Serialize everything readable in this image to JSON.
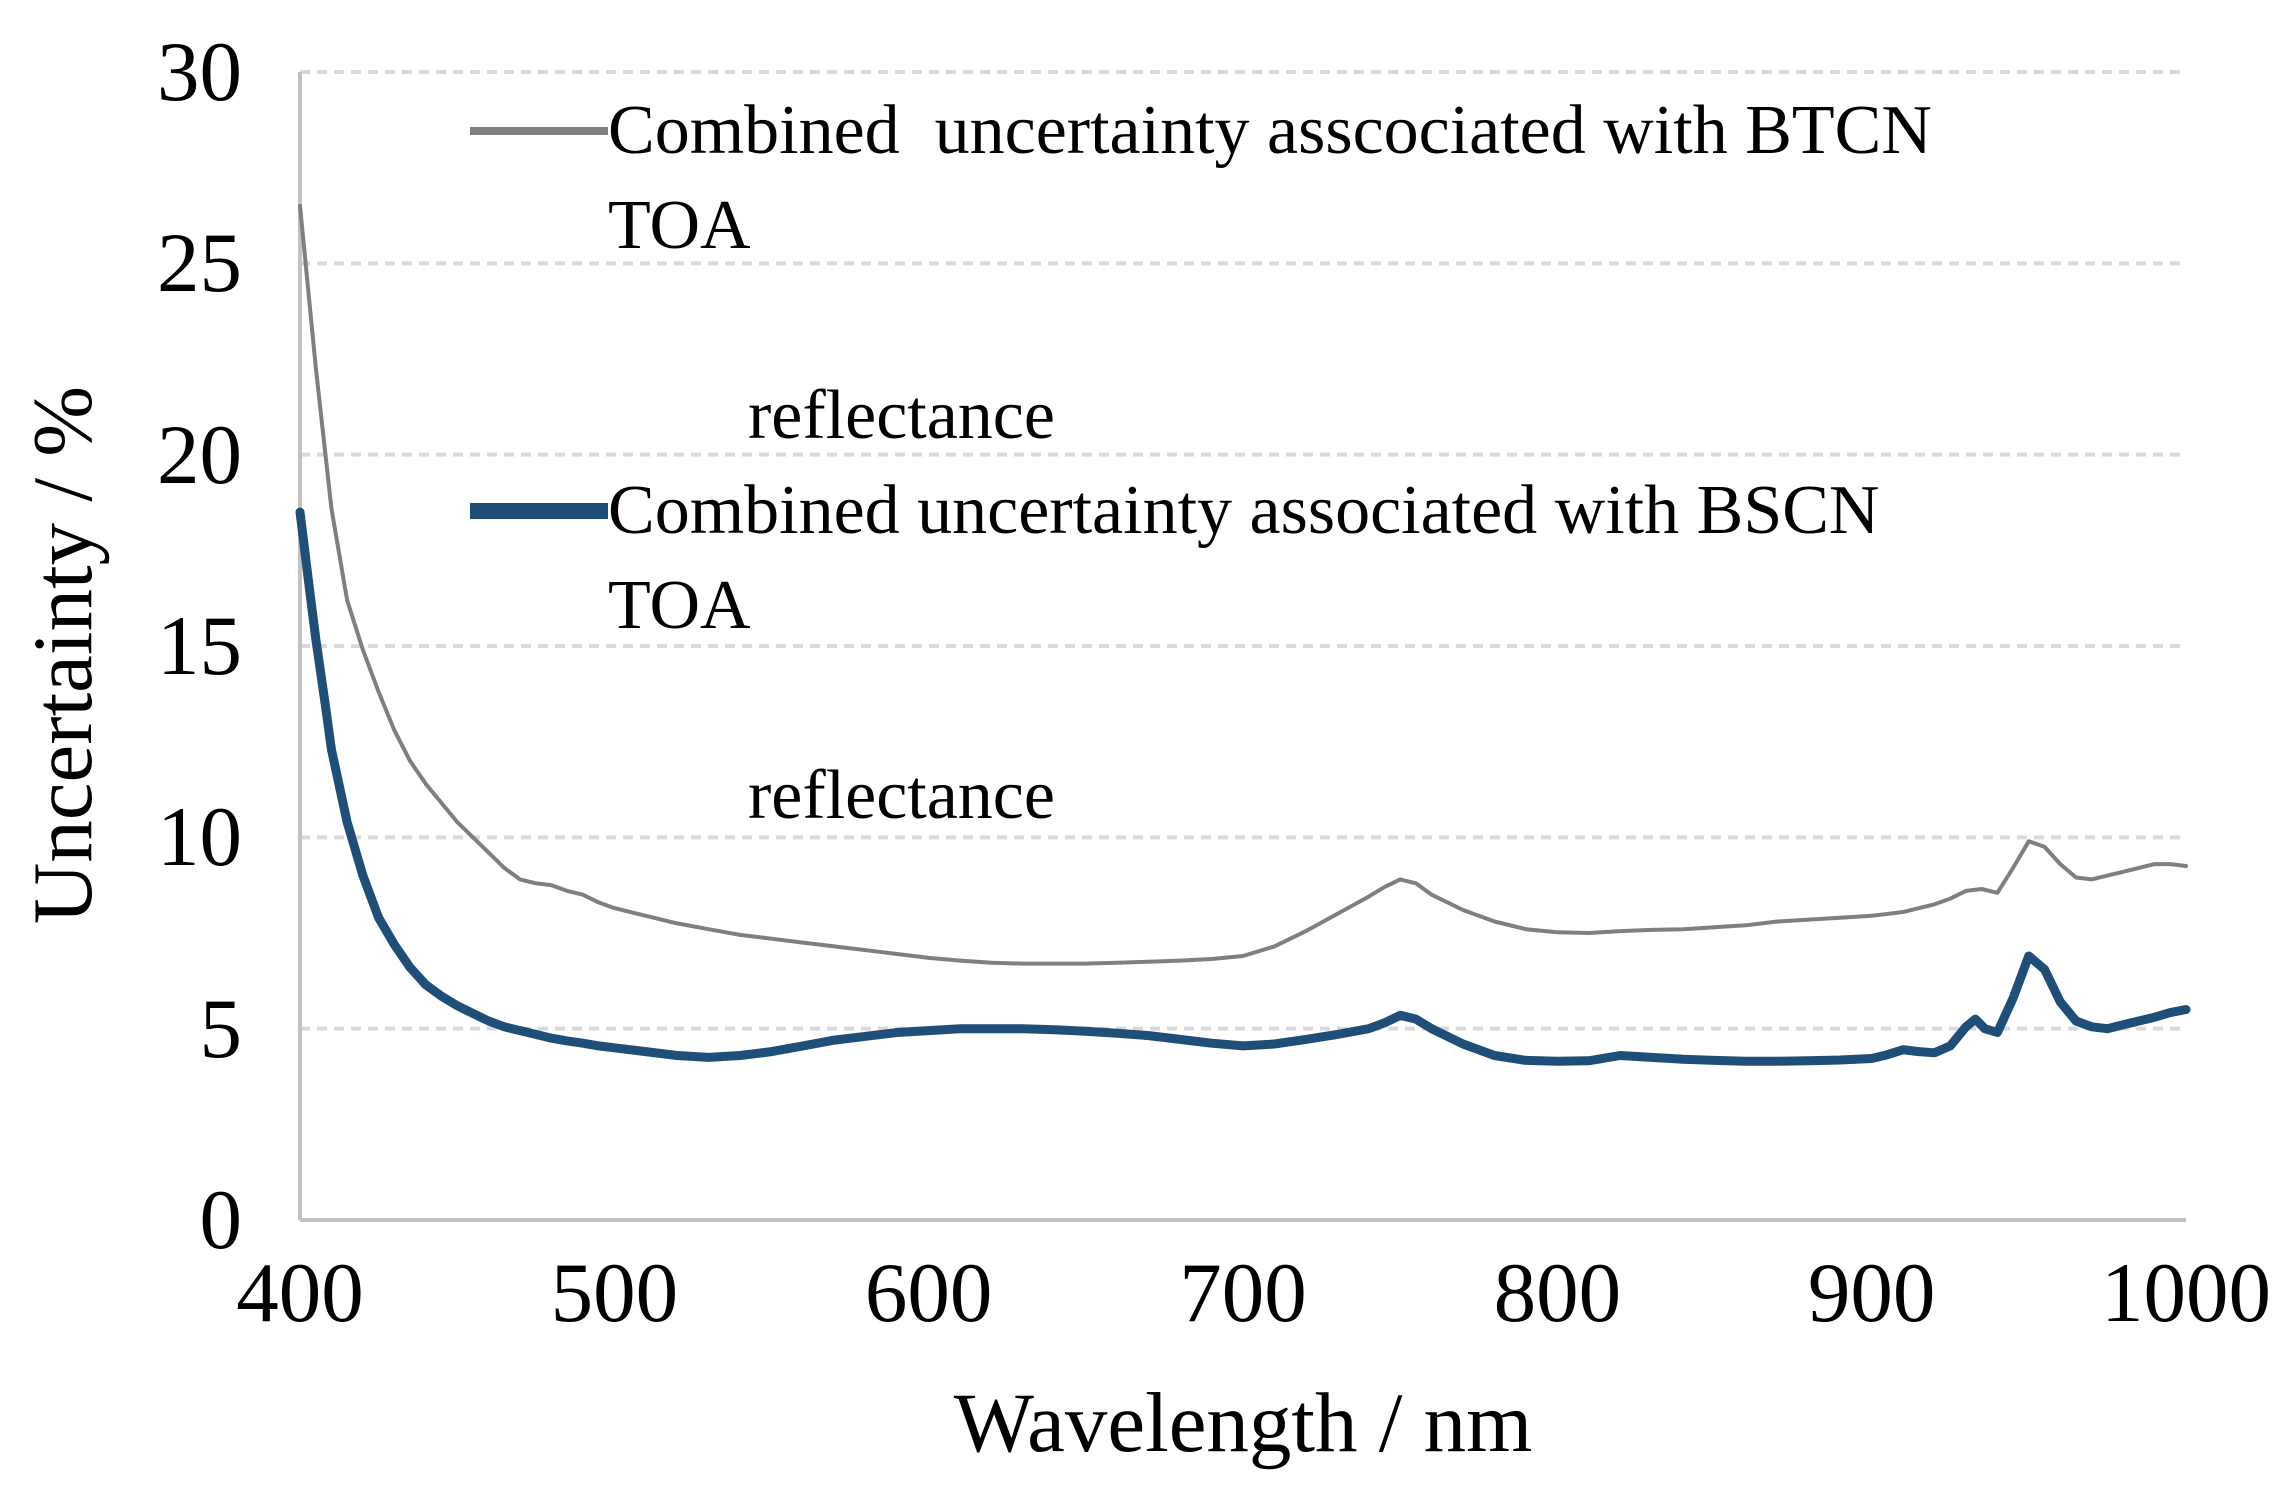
{
  "chart": {
    "y_axis_title": "Uncertainty / %",
    "x_axis_title": "Wavelength / nm",
    "y_tick_labels": [
      "0",
      "5",
      "10",
      "15",
      "20",
      "25",
      "30"
    ],
    "x_tick_labels": [
      "400",
      "500",
      "600",
      "700",
      "800",
      "900",
      "1000"
    ],
    "legend": {
      "entries": [
        {
          "lines": [
            "Combined  uncertainty asscociated with BTCN TOA",
            "reflectance"
          ],
          "color": "#7f7f7f"
        },
        {
          "lines": [
            "Combined uncertainty associated with BSCN TOA",
            "reflectance"
          ],
          "color": "#1f4e79"
        }
      ]
    }
  },
  "colors": {
    "btcn_line": "#7f7f7f",
    "bscn_line": "#1f4e79",
    "gridline": "#d9d9d9",
    "axis_line": "#c2c2c2",
    "text": "#000000"
  },
  "chart_data": {
    "type": "line",
    "title": "",
    "xlabel": "Wavelength / nm",
    "ylabel": "Uncertainty / %",
    "xlim": [
      400,
      1000
    ],
    "ylim": [
      0,
      30
    ],
    "x_ticks": [
      400,
      500,
      600,
      700,
      800,
      900,
      1000
    ],
    "y_ticks": [
      0,
      5,
      10,
      15,
      20,
      25,
      30
    ],
    "grid": "horizontal",
    "legend_position": "top-center-inside",
    "series": [
      {
        "name": "Combined uncertainty asscociated with BTCN TOA reflectance",
        "color": "#7f7f7f",
        "line_width": 4,
        "points": [
          [
            400,
            26.5
          ],
          [
            405,
            22.3
          ],
          [
            410,
            18.6
          ],
          [
            415,
            16.2
          ],
          [
            420,
            14.9
          ],
          [
            425,
            13.8
          ],
          [
            430,
            12.8
          ],
          [
            435,
            12.0
          ],
          [
            440,
            11.4
          ],
          [
            445,
            10.9
          ],
          [
            450,
            10.4
          ],
          [
            455,
            10.0
          ],
          [
            460,
            9.6
          ],
          [
            465,
            9.2
          ],
          [
            470,
            8.9
          ],
          [
            475,
            8.8
          ],
          [
            480,
            8.75
          ],
          [
            485,
            8.6
          ],
          [
            490,
            8.5
          ],
          [
            495,
            8.3
          ],
          [
            500,
            8.15
          ],
          [
            510,
            7.95
          ],
          [
            520,
            7.75
          ],
          [
            530,
            7.6
          ],
          [
            540,
            7.45
          ],
          [
            550,
            7.35
          ],
          [
            560,
            7.25
          ],
          [
            570,
            7.15
          ],
          [
            580,
            7.05
          ],
          [
            590,
            6.95
          ],
          [
            600,
            6.85
          ],
          [
            610,
            6.78
          ],
          [
            620,
            6.72
          ],
          [
            630,
            6.7
          ],
          [
            640,
            6.7
          ],
          [
            650,
            6.7
          ],
          [
            660,
            6.72
          ],
          [
            670,
            6.75
          ],
          [
            680,
            6.78
          ],
          [
            690,
            6.82
          ],
          [
            700,
            6.9
          ],
          [
            710,
            7.15
          ],
          [
            720,
            7.55
          ],
          [
            730,
            8.0
          ],
          [
            740,
            8.45
          ],
          [
            745,
            8.7
          ],
          [
            750,
            8.9
          ],
          [
            755,
            8.8
          ],
          [
            760,
            8.5
          ],
          [
            770,
            8.1
          ],
          [
            780,
            7.8
          ],
          [
            790,
            7.6
          ],
          [
            800,
            7.52
          ],
          [
            810,
            7.5
          ],
          [
            820,
            7.55
          ],
          [
            830,
            7.58
          ],
          [
            840,
            7.6
          ],
          [
            850,
            7.65
          ],
          [
            860,
            7.7
          ],
          [
            870,
            7.8
          ],
          [
            880,
            7.85
          ],
          [
            890,
            7.9
          ],
          [
            900,
            7.95
          ],
          [
            910,
            8.05
          ],
          [
            920,
            8.25
          ],
          [
            925,
            8.4
          ],
          [
            930,
            8.6
          ],
          [
            935,
            8.65
          ],
          [
            940,
            8.55
          ],
          [
            945,
            9.2
          ],
          [
            950,
            9.9
          ],
          [
            955,
            9.75
          ],
          [
            960,
            9.3
          ],
          [
            965,
            8.95
          ],
          [
            970,
            8.9
          ],
          [
            975,
            9.0
          ],
          [
            980,
            9.1
          ],
          [
            985,
            9.2
          ],
          [
            990,
            9.3
          ],
          [
            995,
            9.3
          ],
          [
            1000,
            9.25
          ]
        ]
      },
      {
        "name": "Combined uncertainty associated with BSCN TOA reflectance",
        "color": "#1f4e79",
        "line_width": 9,
        "points": [
          [
            400,
            18.5
          ],
          [
            403,
            16.5
          ],
          [
            405,
            15.2
          ],
          [
            408,
            13.5
          ],
          [
            410,
            12.3
          ],
          [
            415,
            10.4
          ],
          [
            420,
            9.0
          ],
          [
            425,
            7.9
          ],
          [
            430,
            7.2
          ],
          [
            435,
            6.6
          ],
          [
            440,
            6.15
          ],
          [
            445,
            5.85
          ],
          [
            450,
            5.6
          ],
          [
            455,
            5.4
          ],
          [
            460,
            5.2
          ],
          [
            465,
            5.05
          ],
          [
            470,
            4.95
          ],
          [
            475,
            4.85
          ],
          [
            480,
            4.75
          ],
          [
            485,
            4.68
          ],
          [
            490,
            4.62
          ],
          [
            495,
            4.55
          ],
          [
            500,
            4.5
          ],
          [
            510,
            4.4
          ],
          [
            520,
            4.3
          ],
          [
            530,
            4.25
          ],
          [
            540,
            4.3
          ],
          [
            550,
            4.4
          ],
          [
            560,
            4.55
          ],
          [
            570,
            4.7
          ],
          [
            580,
            4.8
          ],
          [
            590,
            4.9
          ],
          [
            600,
            4.95
          ],
          [
            610,
            5.0
          ],
          [
            620,
            5.0
          ],
          [
            630,
            5.0
          ],
          [
            640,
            4.97
          ],
          [
            650,
            4.93
          ],
          [
            660,
            4.88
          ],
          [
            670,
            4.82
          ],
          [
            680,
            4.72
          ],
          [
            690,
            4.62
          ],
          [
            700,
            4.55
          ],
          [
            710,
            4.6
          ],
          [
            720,
            4.72
          ],
          [
            730,
            4.85
          ],
          [
            740,
            5.0
          ],
          [
            745,
            5.15
          ],
          [
            750,
            5.35
          ],
          [
            755,
            5.25
          ],
          [
            760,
            5.0
          ],
          [
            770,
            4.6
          ],
          [
            780,
            4.3
          ],
          [
            790,
            4.17
          ],
          [
            800,
            4.15
          ],
          [
            810,
            4.16
          ],
          [
            820,
            4.3
          ],
          [
            830,
            4.25
          ],
          [
            840,
            4.2
          ],
          [
            850,
            4.17
          ],
          [
            860,
            4.15
          ],
          [
            870,
            4.15
          ],
          [
            880,
            4.16
          ],
          [
            890,
            4.18
          ],
          [
            900,
            4.22
          ],
          [
            905,
            4.32
          ],
          [
            910,
            4.45
          ],
          [
            915,
            4.4
          ],
          [
            920,
            4.37
          ],
          [
            925,
            4.55
          ],
          [
            930,
            5.05
          ],
          [
            933,
            5.25
          ],
          [
            936,
            5.0
          ],
          [
            940,
            4.9
          ],
          [
            945,
            5.8
          ],
          [
            950,
            6.9
          ],
          [
            955,
            6.55
          ],
          [
            960,
            5.7
          ],
          [
            965,
            5.2
          ],
          [
            970,
            5.05
          ],
          [
            975,
            5.0
          ],
          [
            980,
            5.1
          ],
          [
            985,
            5.2
          ],
          [
            990,
            5.3
          ],
          [
            995,
            5.42
          ],
          [
            1000,
            5.5
          ]
        ]
      }
    ]
  }
}
